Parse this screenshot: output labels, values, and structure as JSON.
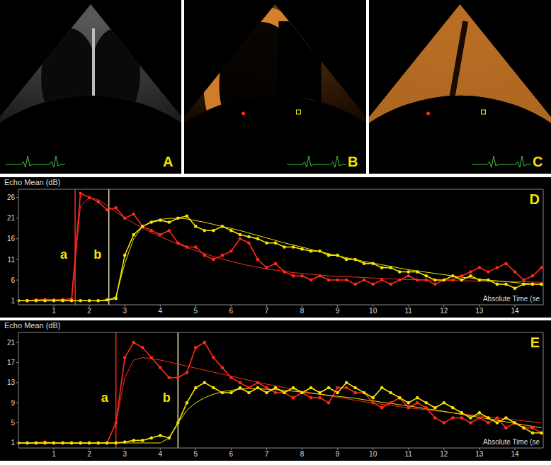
{
  "images": [
    {
      "label": "A"
    },
    {
      "label": "B"
    },
    {
      "label": "C"
    }
  ],
  "chart_data": [
    {
      "type": "line",
      "title": "D",
      "y_label": "Echo Mean (dB)",
      "x_label": "Absolute Time (se",
      "grid": false,
      "xlim": [
        0,
        14.8
      ],
      "xticks": [
        1,
        2,
        3,
        4,
        5,
        6,
        7,
        8,
        9,
        10,
        11,
        12,
        13,
        14
      ],
      "ylim": [
        0,
        28
      ],
      "yticks": [
        1,
        6,
        11,
        16,
        21,
        26
      ],
      "x": [
        0,
        0.25,
        0.5,
        0.75,
        1,
        1.25,
        1.5,
        1.75,
        2,
        2.25,
        2.5,
        2.75,
        3,
        3.25,
        3.5,
        3.75,
        4,
        4.25,
        4.5,
        4.75,
        5,
        5.25,
        5.5,
        5.75,
        6,
        6.25,
        6.5,
        6.75,
        7,
        7.25,
        7.5,
        7.75,
        8,
        8.25,
        8.5,
        8.75,
        9,
        9.25,
        9.5,
        9.75,
        10,
        10.25,
        10.5,
        10.75,
        11,
        11.25,
        11.5,
        11.75,
        12,
        12.25,
        12.5,
        12.75,
        13,
        13.25,
        13.5,
        13.75,
        14,
        14.25,
        14.5,
        14.75
      ],
      "series": [
        {
          "color": "#ff2a1a",
          "marker": "circle",
          "values": [
            1,
            1,
            1.2,
            1.3,
            1.2,
            1.3,
            1.4,
            27,
            26,
            25,
            23,
            23.5,
            21,
            22,
            19,
            18,
            17,
            18,
            15,
            14,
            14,
            12,
            11,
            12,
            13,
            16,
            15,
            11,
            9,
            10,
            8,
            7,
            7,
            6,
            7,
            6,
            6,
            6,
            5,
            6,
            5,
            6,
            5,
            6,
            7,
            6,
            6,
            5,
            6,
            6,
            7,
            8,
            9,
            8,
            9,
            10,
            8,
            6,
            7,
            9
          ]
        },
        {
          "color": "#ff2a1a",
          "marker": "none",
          "values": [
            1,
            1,
            1,
            1,
            1,
            1,
            1,
            24,
            26,
            25.5,
            24,
            22.5,
            21,
            19.8,
            18.6,
            17.5,
            16.5,
            15.6,
            14.7,
            13.9,
            13.1,
            12.4,
            11.7,
            11.1,
            10.5,
            10,
            9.5,
            9.1,
            8.7,
            8.4,
            8.1,
            7.8,
            7.6,
            7.4,
            7.2,
            7,
            6.9,
            6.8,
            6.7,
            6.6,
            6.5,
            6.4,
            6.3,
            6.2,
            6.1,
            6.1,
            6,
            6,
            5.9,
            5.9,
            5.8,
            5.8,
            5.7,
            5.7,
            5.7,
            5.6,
            5.6,
            5.6,
            5.5,
            5.5
          ]
        },
        {
          "color": "#f5e400",
          "marker": "circle",
          "values": [
            1,
            1,
            1,
            1,
            1,
            1,
            1,
            1,
            1,
            1,
            1.2,
            1.5,
            12,
            17,
            19,
            20,
            20.5,
            20,
            21,
            21.5,
            19,
            18,
            18,
            19,
            18,
            17,
            16.5,
            16,
            15,
            15,
            14,
            14,
            13.5,
            13,
            13,
            12,
            12,
            11,
            11,
            10,
            10,
            9,
            9,
            8,
            8,
            8,
            7,
            6,
            6,
            7,
            6,
            7,
            6,
            6,
            5,
            5,
            4,
            5,
            5,
            5
          ]
        },
        {
          "color": "#f5e400",
          "marker": "none",
          "values": [
            1,
            1,
            1,
            1,
            1,
            1,
            1,
            1,
            1,
            1,
            1,
            2,
            10,
            16,
            19,
            20.2,
            20.7,
            20.9,
            21,
            20.8,
            20.4,
            20,
            19.5,
            19,
            18.5,
            18,
            17.4,
            16.8,
            16.2,
            15.6,
            15,
            14.5,
            14,
            13.4,
            12.9,
            12.4,
            11.9,
            11.4,
            11,
            10.5,
            10.1,
            9.7,
            9.3,
            8.9,
            8.5,
            8.2,
            7.9,
            7.6,
            7.3,
            7,
            6.7,
            6.5,
            6.2,
            6,
            5.8,
            5.6,
            5.4,
            5.2,
            5.1,
            5
          ]
        }
      ],
      "annotations": [
        {
          "text": "a",
          "x": 1.6,
          "color": "#ff2a1a"
        },
        {
          "text": "b",
          "x": 2.55,
          "color": "#e8e2b0"
        }
      ]
    },
    {
      "type": "line",
      "title": "E",
      "y_label": "Echo Mean (dB)",
      "x_label": "Absolute Time (se",
      "grid": false,
      "xlim": [
        0,
        14.8
      ],
      "xticks": [
        1,
        2,
        3,
        4,
        5,
        6,
        7,
        8,
        9,
        10,
        11,
        12,
        13,
        14
      ],
      "ylim": [
        0,
        23
      ],
      "yticks": [
        1,
        5,
        9,
        13,
        17,
        21
      ],
      "x": [
        0,
        0.25,
        0.5,
        0.75,
        1,
        1.25,
        1.5,
        1.75,
        2,
        2.25,
        2.5,
        2.75,
        3,
        3.25,
        3.5,
        3.75,
        4,
        4.25,
        4.5,
        4.75,
        5,
        5.25,
        5.5,
        5.75,
        6,
        6.25,
        6.5,
        6.75,
        7,
        7.25,
        7.5,
        7.75,
        8,
        8.25,
        8.5,
        8.75,
        9,
        9.25,
        9.5,
        9.75,
        10,
        10.25,
        10.5,
        10.75,
        11,
        11.25,
        11.5,
        11.75,
        12,
        12.25,
        12.5,
        12.75,
        13,
        13.25,
        13.5,
        13.75,
        14,
        14.25,
        14.5,
        14.75
      ],
      "series": [
        {
          "color": "#ff2a1a",
          "marker": "circle",
          "values": [
            1,
            1,
            1,
            1.2,
            1,
            1,
            1,
            1,
            1,
            1,
            1,
            5,
            18,
            21,
            20,
            18,
            16,
            14,
            14,
            15,
            20,
            21,
            18,
            16,
            14,
            13,
            12,
            13,
            12,
            11,
            11,
            10,
            11,
            10,
            10,
            9,
            12,
            12,
            11,
            11,
            9,
            8,
            9,
            10,
            8,
            9,
            8,
            6,
            5,
            6,
            6,
            5,
            6,
            5,
            6,
            4,
            5,
            4,
            4,
            3
          ]
        },
        {
          "color": "#ff2a1a",
          "marker": "none",
          "values": [
            1,
            1,
            1,
            1,
            1,
            1,
            1,
            1,
            1,
            1,
            1,
            5,
            14,
            17.5,
            18,
            17.8,
            17.5,
            17.1,
            16.7,
            16.3,
            15.9,
            15.5,
            15.1,
            14.7,
            14.3,
            13.9,
            13.5,
            13.1,
            12.7,
            12.4,
            12,
            11.7,
            11.3,
            11,
            10.7,
            10.4,
            10.1,
            9.8,
            9.5,
            9.2,
            9,
            8.7,
            8.5,
            8.2,
            8,
            7.8,
            7.6,
            7.4,
            7.2,
            7,
            6.8,
            6.6,
            6.4,
            6.2,
            6,
            5.8,
            5.6,
            5.4,
            5.2,
            5
          ]
        },
        {
          "color": "#f5e400",
          "marker": "circle",
          "values": [
            1,
            1,
            1,
            1,
            1,
            1,
            1,
            1,
            1,
            1,
            1,
            1,
            1.2,
            1.5,
            1.5,
            2,
            2.5,
            2,
            5,
            9,
            12,
            13,
            12,
            11,
            11,
            12,
            11,
            12,
            11,
            12,
            11,
            12,
            11,
            12,
            11,
            12,
            11,
            13,
            12,
            11,
            10,
            12,
            11,
            10,
            9,
            10,
            9,
            8,
            9,
            8,
            7,
            6,
            7,
            6,
            5,
            6,
            5,
            4,
            3,
            3
          ]
        },
        {
          "color": "#f5e400",
          "marker": "none",
          "values": [
            1,
            1,
            1,
            1,
            1,
            1,
            1,
            1,
            1,
            1,
            1,
            1,
            1,
            1,
            1,
            1,
            1,
            2,
            5,
            7.5,
            9,
            10,
            10.7,
            11.2,
            11.5,
            11.7,
            11.8,
            11.8,
            11.7,
            11.6,
            11.5,
            11.3,
            11.1,
            10.9,
            10.7,
            10.5,
            10.3,
            10.1,
            9.9,
            9.6,
            9.4,
            9.1,
            8.9,
            8.6,
            8.4,
            8.1,
            7.8,
            7.6,
            7.3,
            7,
            6.7,
            6.4,
            6.1,
            5.8,
            5.5,
            5.2,
            4.9,
            4.6,
            4.3,
            4
          ]
        }
      ],
      "annotations": [
        {
          "text": "a",
          "x": 2.75,
          "color": "#ff2a1a"
        },
        {
          "text": "b",
          "x": 4.5,
          "color": "#e8e2b0"
        }
      ]
    }
  ]
}
